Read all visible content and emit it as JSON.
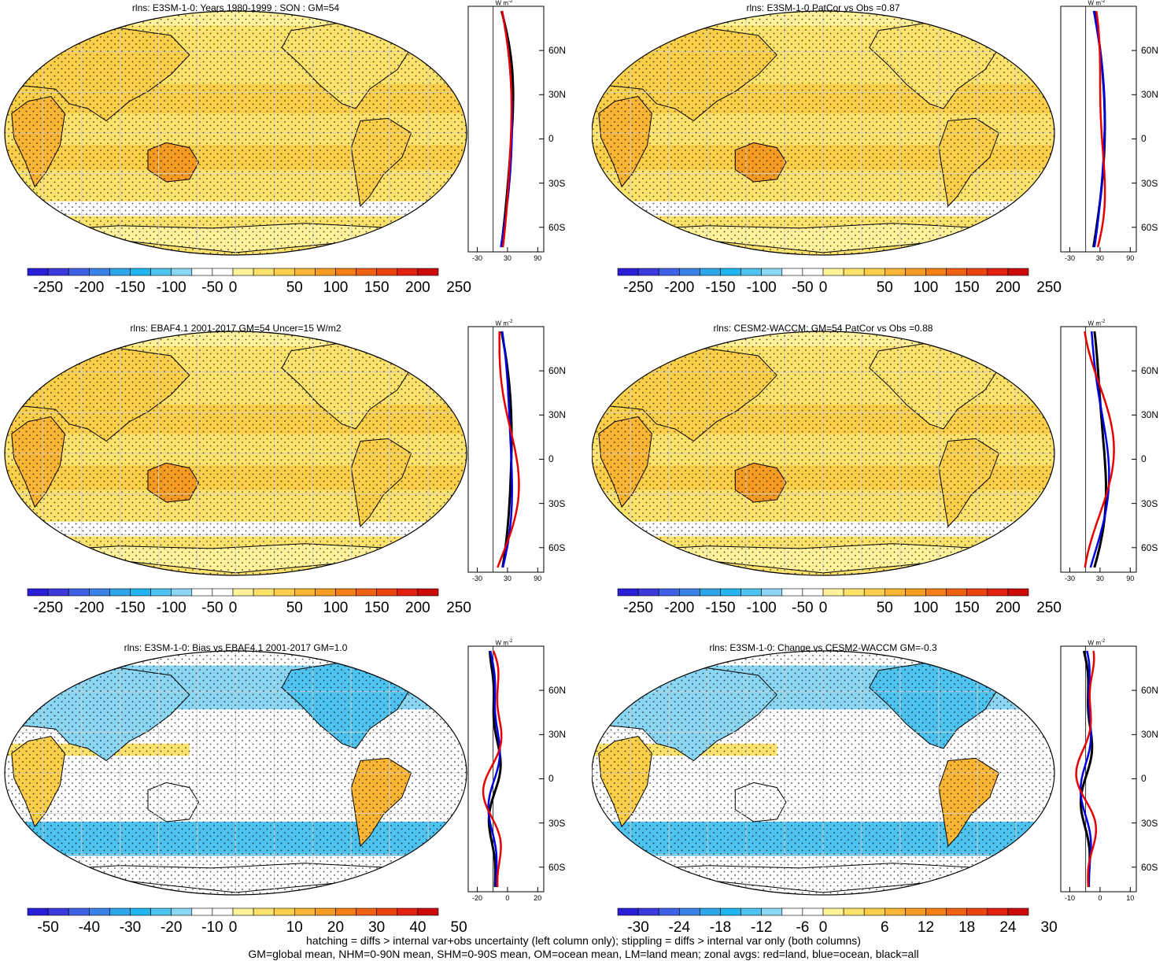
{
  "panels": [
    {
      "id": "p1",
      "title": "rlns: E3SM-1-0: Years 1980-1999 : SON : GM=54",
      "palette": "abs",
      "cbar_labels": [
        "-250",
        "-200",
        "-150",
        "-100",
        "-50",
        "0",
        "50",
        "100",
        "150",
        "200",
        "250"
      ],
      "zonal_xlabels": [
        "-30",
        "30",
        "90"
      ]
    },
    {
      "id": "p2",
      "title": "rlns: E3SM-1-0 PatCor vs Obs =0.87",
      "palette": "abs",
      "cbar_labels": [
        "-250",
        "-200",
        "-150",
        "-100",
        "-50",
        "0",
        "50",
        "100",
        "150",
        "200",
        "250"
      ],
      "zonal_xlabels": [
        "-30",
        "30",
        "90"
      ]
    },
    {
      "id": "p3",
      "title": "rlns: EBAF4.1 2001-2017 GM=54 Uncer=15 W/m2",
      "palette": "abs",
      "cbar_labels": [
        "-250",
        "-200",
        "-150",
        "-100",
        "-50",
        "0",
        "50",
        "100",
        "150",
        "200",
        "250"
      ],
      "zonal_xlabels": [
        "-30",
        "30",
        "90"
      ]
    },
    {
      "id": "p4",
      "title": "rlns: CESM2-WACCM: GM=54 PatCor vs Obs =0.88",
      "palette": "abs",
      "cbar_labels": [
        "-250",
        "-200",
        "-150",
        "-100",
        "-50",
        "0",
        "50",
        "100",
        "150",
        "200",
        "250"
      ],
      "zonal_xlabels": [
        "-30",
        "30",
        "90"
      ]
    },
    {
      "id": "p5",
      "title": "rlns: E3SM-1-0: Bias vs EBAF4.1 2001-2017  GM=1.0",
      "palette": "diff",
      "cbar_labels": [
        "-50",
        "-40",
        "-30",
        "-20",
        "-10",
        "0",
        "10",
        "20",
        "30",
        "40",
        "50"
      ],
      "zonal_xlabels": [
        "-20",
        "0",
        "20"
      ]
    },
    {
      "id": "p6",
      "title": "rlns: E3SM-1-0: Change vs CESM2-WACCM GM=-0.3",
      "palette": "diff",
      "cbar_labels": [
        "-30",
        "-24",
        "-18",
        "-12",
        "-6",
        "0",
        "6",
        "12",
        "18",
        "24",
        "30"
      ],
      "zonal_xlabels": [
        "-10",
        "0",
        "10"
      ]
    }
  ],
  "zonal_lat_labels": [
    "60N",
    "30N",
    "0",
    "30S",
    "60S"
  ],
  "zonal_unit": "W m",
  "zonal_unit_sup": "-2",
  "colors": {
    "abs_bar": [
      "#2a1fd6",
      "#3a3adf",
      "#3e62e3",
      "#3b82e6",
      "#2fa5ea",
      "#22b4ec",
      "#4fc3ef",
      "#8bd6f3",
      "#ffffff",
      "#ffffff",
      "#fff29a",
      "#fde26c",
      "#fbcf49",
      "#f9b533",
      "#f69b22",
      "#f37f16",
      "#ef6112",
      "#ea4210",
      "#e32110",
      "#cc0a0a"
    ],
    "land": "#e60000",
    "ocean": "#0000e6",
    "all": "#000000"
  },
  "footer": [
    "hatching = diffs > internal var+obs uncertainty (left column only); stippling = diffs > internal var only (both columns)",
    "GM=global mean, NHM=0-90N mean, SHM=0-90S mean, OM=ocean mean, LM=land mean; zonal avgs: red=land, blue=ocean, black=all"
  ]
}
